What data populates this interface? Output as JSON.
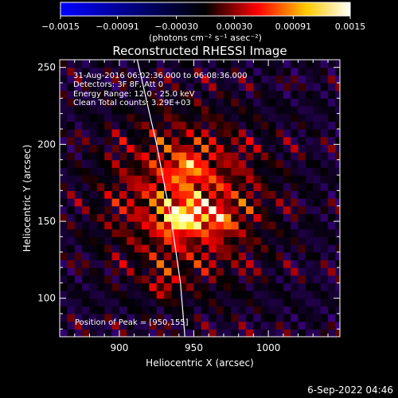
{
  "colorbar": {
    "ticks": [
      -0.0015,
      -0.00091,
      -0.0003,
      0.0003,
      0.00091,
      0.0015
    ],
    "tick_labels": [
      "−0.0015",
      "−0.00091",
      "−0.00030",
      "0.00030",
      "0.00091",
      "0.0015"
    ],
    "unit_label": "(photons cm⁻² s⁻¹ asec⁻²)",
    "range": [
      -0.0015,
      0.0015
    ],
    "colormap": [
      "#0000ff",
      "#000000",
      "#ff0000",
      "#ffff00",
      "#ffffff"
    ]
  },
  "title": "Reconstructed RHESSI Image",
  "annotations": [
    "31-Aug-2016 06:02:36.000 to 06:08:36.000",
    "Detectors: 3F 8F, Att 0",
    "Energy Range: 12.0 - 25.0 keV",
    "Clean     Total counts: 3.29E+03"
  ],
  "peak_label": "Position of Peak = [950,155]",
  "xlabel": "Heliocentric X (arcsec)",
  "ylabel": "Heliocentric Y (arcsec)",
  "timestamp": "6-Sep-2022 04:46",
  "chart_data": {
    "type": "heatmap",
    "title": "Reconstructed RHESSI Image",
    "xlabel": "Heliocentric X (arcsec)",
    "ylabel": "Heliocentric Y (arcsec)",
    "xlim": [
      860,
      1048
    ],
    "ylim": [
      75,
      255
    ],
    "x_ticks": [
      900,
      950,
      1000
    ],
    "y_ticks": [
      100,
      150,
      200,
      250
    ],
    "value_range": [
      -0.0015,
      0.0015
    ],
    "peak": [
      950,
      155
    ],
    "limb_curve": [
      [
        912,
        255
      ],
      [
        925,
        200
      ],
      [
        935,
        150
      ],
      [
        941,
        110
      ],
      [
        944,
        75
      ]
    ],
    "bright_spots": [
      [
        938,
        150
      ],
      [
        950,
        155
      ],
      [
        930,
        108
      ],
      [
        968,
        150
      ],
      [
        945,
        185
      ]
    ]
  }
}
